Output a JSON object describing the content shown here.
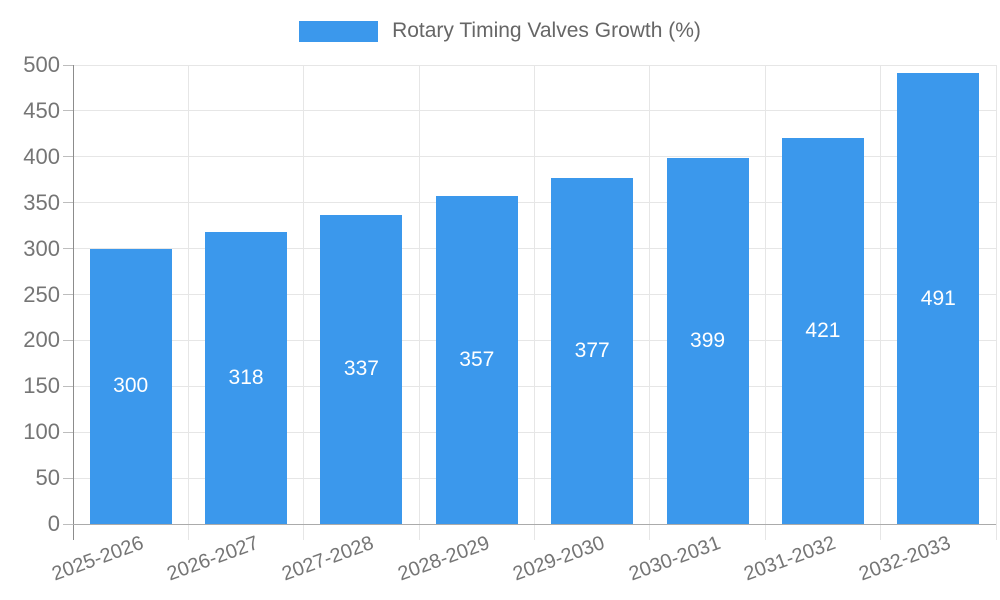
{
  "chart_data": {
    "type": "bar",
    "title": "Rotary Timing Valves Growth (%)",
    "categories": [
      "2025-2026",
      "2026-2027",
      "2027-2028",
      "2028-2029",
      "2029-2030",
      "2030-2031",
      "2031-2032",
      "2032-2033"
    ],
    "values": [
      300,
      318,
      337,
      357,
      377,
      399,
      421,
      491
    ],
    "xlabel": "",
    "ylabel": "",
    "ylim": [
      0,
      500
    ],
    "ytick_step": 50,
    "grid": true,
    "legend_position": "top-center",
    "legend_label": "Rotary Timing Valves Growth (%)",
    "colors": {
      "bar": "#3b98ec",
      "bar_value_text": "#ffffff",
      "axis_tick_text": "#757575",
      "legend_text": "#666666",
      "grid_line": "#e6e6e6",
      "y_axis_line": "#8c8c8c",
      "x_axis_line": "#ababab",
      "tick_mark": "#bdbdbd",
      "background": "#ffffff"
    }
  }
}
